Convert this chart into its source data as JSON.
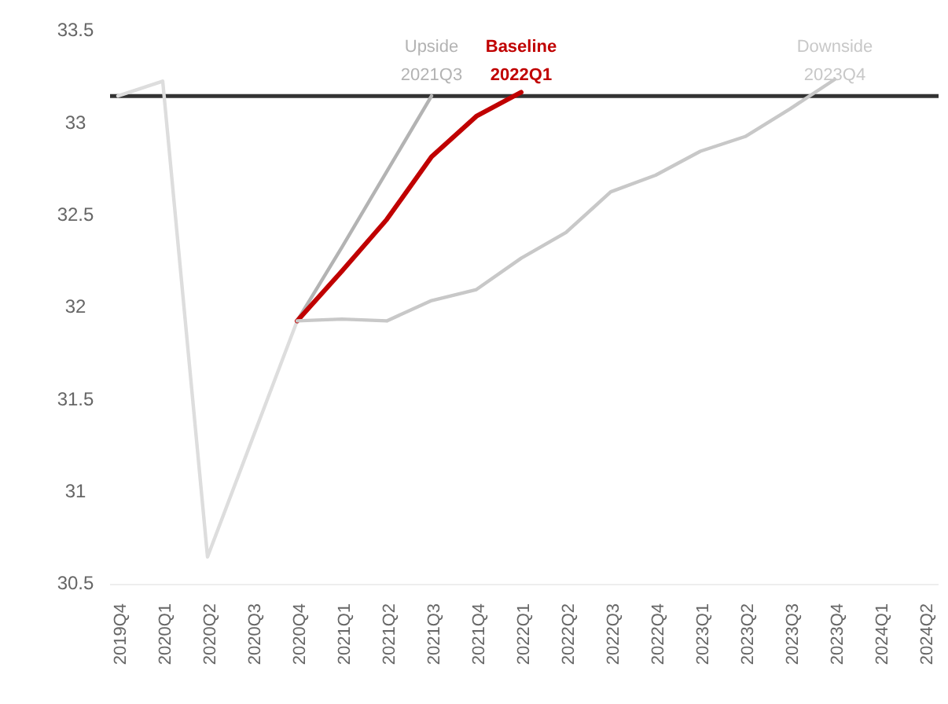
{
  "chart_data": {
    "type": "line",
    "categories": [
      "2019Q4",
      "2020Q1",
      "2020Q2",
      "2020Q3",
      "2020Q4",
      "2021Q1",
      "2021Q2",
      "2021Q3",
      "2021Q4",
      "2022Q1",
      "2022Q2",
      "2022Q3",
      "2022Q4",
      "2023Q1",
      "2023Q2",
      "2023Q3",
      "2023Q4",
      "2024Q1",
      "2024Q2"
    ],
    "series": [
      {
        "color": "#dddddd",
        "values": [
          33.15,
          33.23,
          30.65,
          31.29,
          31.93,
          null,
          null,
          null,
          null,
          null,
          null,
          null,
          null,
          null,
          null,
          null,
          null,
          null,
          null
        ]
      },
      {
        "name": "Upside",
        "color": "#b3b3b3",
        "values": [
          null,
          null,
          null,
          null,
          31.93,
          32.33,
          32.74,
          33.15,
          null,
          null,
          null,
          null,
          null,
          null,
          null,
          null,
          null,
          null,
          null
        ]
      },
      {
        "name": "Baseline",
        "color": "#c00000",
        "values": [
          null,
          null,
          null,
          null,
          31.93,
          32.2,
          32.48,
          32.82,
          33.04,
          33.17,
          null,
          null,
          null,
          null,
          null,
          null,
          null,
          null,
          null
        ]
      },
      {
        "name": "Downside",
        "color": "#c8c8c8",
        "values": [
          null,
          null,
          null,
          null,
          31.93,
          31.94,
          31.93,
          32.04,
          32.1,
          32.27,
          32.41,
          32.63,
          32.72,
          32.85,
          32.93,
          33.08,
          33.24,
          null,
          null
        ]
      }
    ],
    "ylim": [
      30.5,
      33.5
    ],
    "yticks": [
      30.5,
      31,
      31.5,
      32,
      32.5,
      33,
      33.5
    ],
    "grid": false,
    "legend": false,
    "marker": "none",
    "line_style": "solid",
    "ref_lines": [
      {
        "axis": "y",
        "value": 33.15,
        "color": "#333333"
      }
    ],
    "annotations": [
      {
        "text": "2021Q3",
        "x": "2021Q3",
        "y": 33.15
      },
      {
        "text": "2022Q1",
        "x": "2022Q1",
        "y": 33.15
      },
      {
        "text": "2023Q4",
        "x": "2023Q4",
        "y": 33.15
      }
    ]
  }
}
